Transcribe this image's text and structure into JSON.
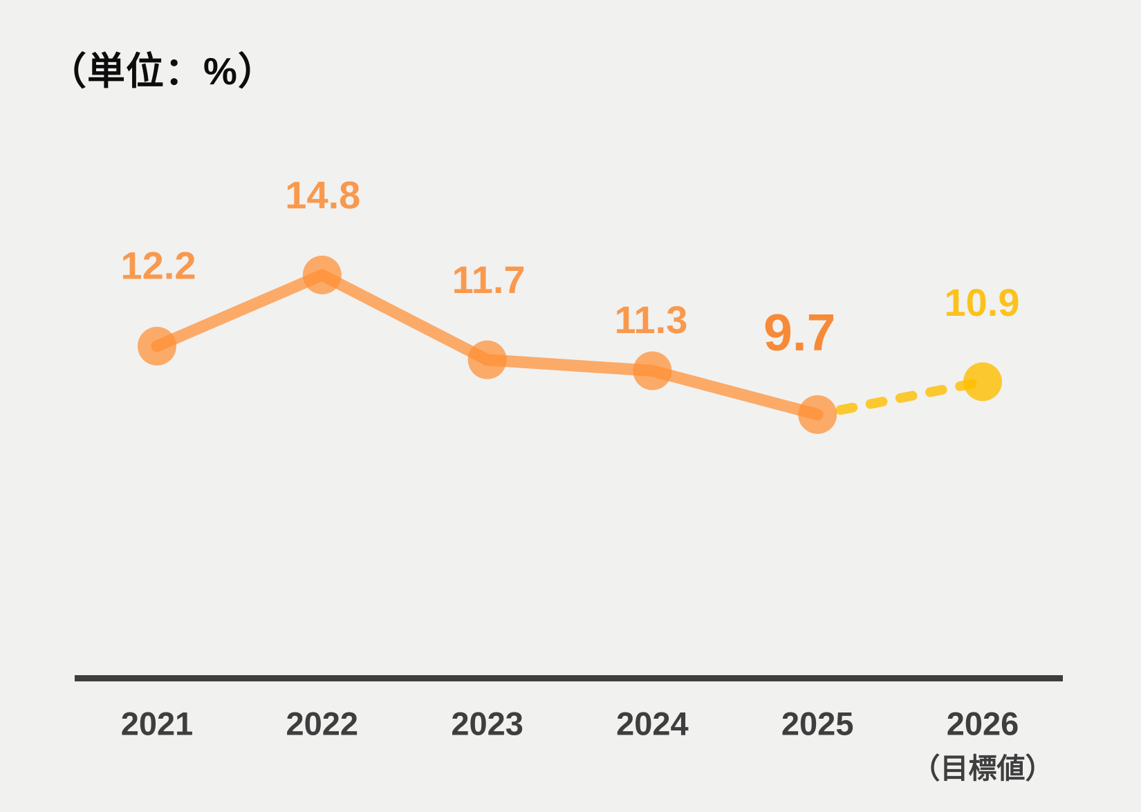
{
  "chart_data": {
    "type": "line",
    "title": "（単位：%）",
    "categories": [
      "2021",
      "2022",
      "2023",
      "2024",
      "2025",
      "2026"
    ],
    "category_note": {
      "index": 5,
      "text": "（目標値）"
    },
    "values": [
      12.2,
      14.8,
      11.7,
      11.3,
      9.7,
      10.9
    ],
    "value_labels": [
      "12.2",
      "14.8",
      "11.7",
      "11.3",
      "9.7",
      "10.9"
    ],
    "series": [
      {
        "name": "actual",
        "categories": [
          "2021",
          "2022",
          "2023",
          "2024",
          "2025"
        ],
        "values": [
          12.2,
          14.8,
          11.7,
          11.3,
          9.7
        ],
        "style": "solid"
      },
      {
        "name": "target",
        "categories": [
          "2025",
          "2026"
        ],
        "values": [
          9.7,
          10.9
        ],
        "style": "dashed"
      }
    ],
    "legend": "none",
    "grid": false,
    "y_axis_visible": false
  },
  "colors": {
    "background": "#F1F1F0",
    "actual": "#FF8F33",
    "target": "#FFBE00",
    "value_label": "#F9994E",
    "value_label_emphasis": "#F78A38",
    "value_label_target": "#FBC21C",
    "axis": "#3E3E3E",
    "title_text": "#0D0D0D"
  }
}
